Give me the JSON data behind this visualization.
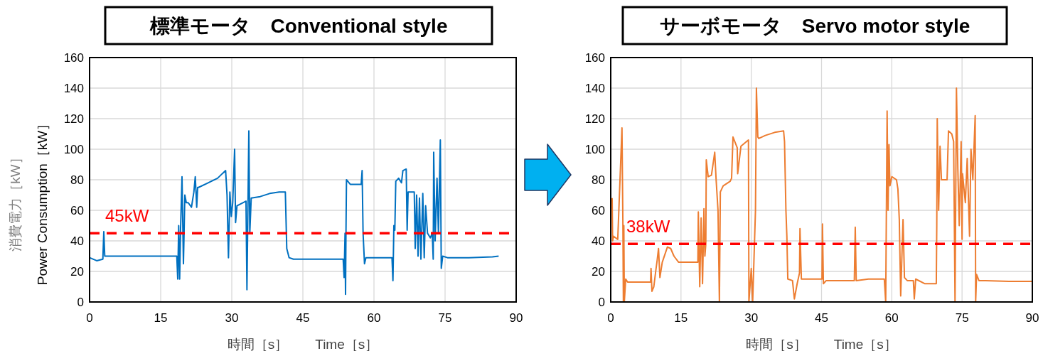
{
  "chart_data": [
    {
      "type": "line",
      "title": "標準モータ　Conventional style",
      "xlabel": "時間［s］　　Time［s］",
      "ylabel": "消費電力［kW］\nPower Consumption［kW］",
      "xlim": [
        0,
        90
      ],
      "xticks": [
        0,
        15,
        30,
        45,
        60,
        75,
        90
      ],
      "ylim": [
        0,
        160
      ],
      "yticks": [
        0,
        20,
        40,
        60,
        80,
        100,
        120,
        140,
        160
      ],
      "grid": true,
      "ref_lines": [
        {
          "axis": "y",
          "value": 45,
          "label": "45kW",
          "color": "#ff0000",
          "line_style": "dashed"
        }
      ],
      "series": [
        {
          "color": "#0070c0",
          "x": [
            0,
            1.5,
            2.8,
            3.0,
            3.2,
            10,
            18.4,
            18.6,
            18.8,
            19.0,
            19.2,
            19.5,
            19.8,
            20.1,
            20.4,
            20.8,
            21.5,
            22.0,
            22.3,
            22.6,
            22.8,
            23.0,
            25,
            27,
            28,
            28.7,
            29.0,
            29.3,
            29.6,
            29.9,
            30.2,
            30.6,
            30.8,
            31.1,
            33.0,
            33.2,
            33.6,
            33.8,
            34.1,
            36,
            38,
            40,
            41.3,
            41.6,
            42.1,
            43,
            50,
            53.5,
            53.7,
            53.9,
            54.0,
            54.1,
            54.2,
            55,
            57.3,
            57.5,
            57.7,
            58.0,
            58.3,
            63.8,
            64.0,
            64.2,
            64.4,
            64.6,
            65.2,
            65.8,
            66.1,
            66.8,
            67.0,
            67.2,
            68.5,
            68.7,
            69.0,
            69.3,
            69.6,
            69.9,
            70.3,
            70.6,
            70.9,
            71.3,
            71.9,
            72.3,
            72.5,
            72.6,
            72.9,
            73.3,
            73.6,
            74.0,
            74.2,
            74.5,
            75.5,
            80,
            85,
            86.3
          ],
          "values": [
            29,
            27,
            28,
            46,
            30,
            30,
            30,
            15,
            50,
            15,
            48,
            82,
            25,
            70,
            65,
            65,
            62,
            72,
            82,
            62,
            75,
            75,
            78,
            81,
            84,
            86,
            70,
            29,
            72,
            56,
            65,
            100,
            52,
            63,
            66,
            8,
            112,
            45,
            68,
            69,
            71,
            72,
            72,
            35,
            29,
            28,
            28,
            28,
            16,
            45,
            5,
            48,
            80,
            77,
            77,
            86,
            45,
            25,
            29,
            29,
            14,
            50,
            47,
            79,
            81,
            78,
            86,
            87,
            47,
            72,
            72,
            35,
            70,
            30,
            68,
            28,
            71,
            29,
            63,
            45,
            42,
            45,
            28,
            98,
            40,
            81,
            45,
            106,
            22,
            30,
            29,
            29,
            29.5,
            30
          ]
        }
      ]
    },
    {
      "type": "line",
      "title": "サーボモータ　Servo motor style",
      "xlabel": "時間［s］　　Time［s］",
      "xlim": [
        0,
        90
      ],
      "xticks": [
        0,
        15,
        30,
        45,
        60,
        75,
        90
      ],
      "ylim": [
        0,
        160
      ],
      "yticks": [
        0,
        20,
        40,
        60,
        80,
        100,
        120,
        140,
        160
      ],
      "grid": true,
      "ref_lines": [
        {
          "axis": "y",
          "value": 38,
          "label": "38kW",
          "color": "#ff0000",
          "line_style": "dashed"
        }
      ],
      "series": [
        {
          "color": "#ed7d31",
          "x": [
            0.3,
            0.4,
            0.6,
            1.5,
            2.4,
            2.6,
            2.7,
            2.8,
            2.9,
            3.2,
            3.6,
            8,
            8.5,
            8.6,
            8.8,
            9.2,
            9.6,
            9.9,
            10.2,
            10.5,
            11,
            12.1,
            12.8,
            13.5,
            14.5,
            17,
            18.6,
            18.7,
            19.0,
            19.3,
            19.6,
            19.9,
            20.1,
            20.3,
            20.4,
            20.8,
            21.5,
            22.2,
            22.5,
            22.9,
            23.2,
            23.4,
            24,
            25.5,
            25.8,
            26.1,
            27,
            27.1,
            27.8,
            29.4,
            29.5,
            30.0,
            30.3,
            30.9,
            31.1,
            31.4,
            31.6,
            33,
            35,
            36.9,
            37.1,
            37.4,
            37.6,
            37.8,
            38.8,
            39.2,
            39.8,
            40.3,
            40.4,
            40.7,
            43,
            45.1,
            45.2,
            45.4,
            46,
            52,
            52.2,
            52.4,
            55,
            58.4,
            58.7,
            59.0,
            59.2,
            59.4,
            59.6,
            60,
            61,
            61.3,
            61.6,
            61.9,
            62.4,
            62.7,
            63.3,
            64.6,
            64.8,
            65.1,
            67,
            69.5,
            69.6,
            69.7,
            70.0,
            70.3,
            70.6,
            71.8,
            72.1,
            72.8,
            73.2,
            73.5,
            73.8,
            74.1,
            74.4,
            74.8,
            75.0,
            75.1,
            75.7,
            76.1,
            76.6,
            76.9,
            77.3,
            77.8,
            77.9,
            78.1,
            78.6,
            80,
            85,
            90
          ],
          "values": [
            68,
            40,
            43,
            41,
            114,
            50,
            0,
            50,
            0,
            15,
            13,
            13,
            13,
            22,
            7,
            10,
            20,
            27,
            35,
            16,
            26,
            36,
            35,
            30,
            26,
            26,
            26,
            59,
            10,
            55,
            12,
            61,
            30,
            38,
            93,
            82,
            83,
            98,
            80,
            60,
            0,
            72,
            76,
            79,
            81,
            108,
            101,
            84,
            102,
            106,
            0,
            22,
            0,
            60,
            140,
            108,
            107,
            109,
            111,
            112,
            105,
            60,
            43,
            15,
            14,
            2,
            12,
            19,
            48,
            15,
            15,
            15,
            51,
            12,
            14,
            14,
            49,
            14,
            15,
            15,
            0,
            125,
            60,
            103,
            76,
            82,
            80,
            74,
            54,
            4,
            54,
            16,
            14,
            14,
            2,
            15,
            12,
            12,
            50,
            120,
            60,
            102,
            80,
            80,
            112,
            110,
            105,
            0,
            140,
            87,
            50,
            105,
            41,
            84,
            65,
            94,
            43,
            100,
            80,
            122,
            0,
            18,
            14,
            14,
            13.5,
            13.5
          ]
        }
      ]
    }
  ]
}
